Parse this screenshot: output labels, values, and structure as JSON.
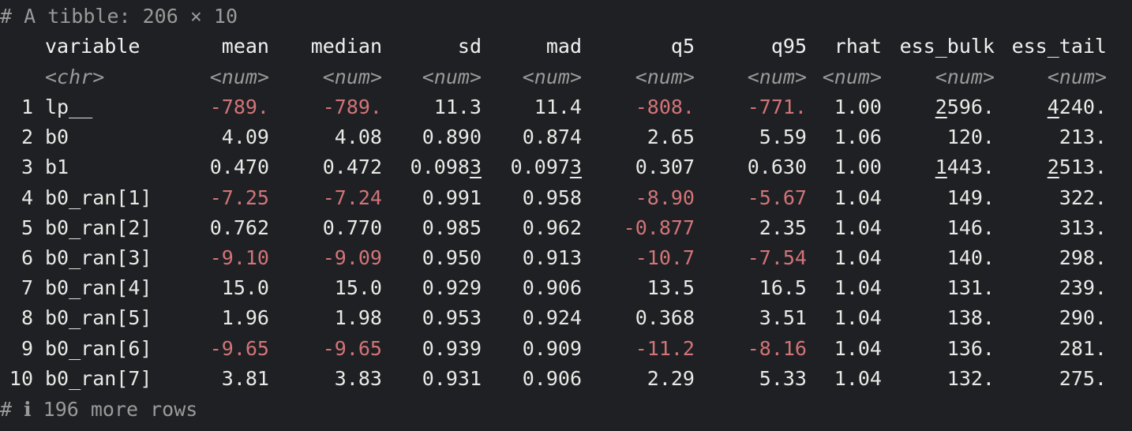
{
  "header_comment": "# A tibble: 206 × 10",
  "columns": [
    {
      "name": "variable",
      "type": "<chr>"
    },
    {
      "name": "mean",
      "type": "<num>"
    },
    {
      "name": "median",
      "type": "<num>"
    },
    {
      "name": "sd",
      "type": "<num>"
    },
    {
      "name": "mad",
      "type": "<num>"
    },
    {
      "name": "q5",
      "type": "<num>"
    },
    {
      "name": "q95",
      "type": "<num>"
    },
    {
      "name": "rhat",
      "type": "<num>"
    },
    {
      "name": "ess_bulk",
      "type": "<num>"
    },
    {
      "name": "ess_tail",
      "type": "<num>"
    }
  ],
  "rows": [
    {
      "n": "1",
      "variable": "lp__",
      "mean": "-789.",
      "median": "-789.",
      "sd": "11.3",
      "mad": "11.4",
      "q5": "-808.",
      "q95": "-771.",
      "rhat": "1.00",
      "ess_bulk": "2596.",
      "ess_tail": "4240."
    },
    {
      "n": "2",
      "variable": "b0",
      "mean": "4.09",
      "median": "4.08",
      "sd": "0.890",
      "mad": "0.874",
      "q5": "2.65",
      "q95": "5.59",
      "rhat": "1.06",
      "ess_bulk": "120.",
      "ess_tail": "213."
    },
    {
      "n": "3",
      "variable": "b1",
      "mean": "0.470",
      "median": "0.472",
      "sd": "0.0983",
      "mad": "0.0973",
      "q5": "0.307",
      "q95": "0.630",
      "rhat": "1.00",
      "ess_bulk": "1443.",
      "ess_tail": "2513."
    },
    {
      "n": "4",
      "variable": "b0_ran[1]",
      "mean": "-7.25",
      "median": "-7.24",
      "sd": "0.991",
      "mad": "0.958",
      "q5": "-8.90",
      "q95": "-5.67",
      "rhat": "1.04",
      "ess_bulk": "149.",
      "ess_tail": "322."
    },
    {
      "n": "5",
      "variable": "b0_ran[2]",
      "mean": "0.762",
      "median": "0.770",
      "sd": "0.985",
      "mad": "0.962",
      "q5": "-0.877",
      "q95": "2.35",
      "rhat": "1.04",
      "ess_bulk": "146.",
      "ess_tail": "313."
    },
    {
      "n": "6",
      "variable": "b0_ran[3]",
      "mean": "-9.10",
      "median": "-9.09",
      "sd": "0.950",
      "mad": "0.913",
      "q5": "-10.7",
      "q95": "-7.54",
      "rhat": "1.04",
      "ess_bulk": "140.",
      "ess_tail": "298."
    },
    {
      "n": "7",
      "variable": "b0_ran[4]",
      "mean": "15.0",
      "median": "15.0",
      "sd": "0.929",
      "mad": "0.906",
      "q5": "13.5",
      "q95": "16.5",
      "rhat": "1.04",
      "ess_bulk": "131.",
      "ess_tail": "239."
    },
    {
      "n": "8",
      "variable": "b0_ran[5]",
      "mean": "1.96",
      "median": "1.98",
      "sd": "0.953",
      "mad": "0.924",
      "q5": "0.368",
      "q95": "3.51",
      "rhat": "1.04",
      "ess_bulk": "138.",
      "ess_tail": "290."
    },
    {
      "n": "9",
      "variable": "b0_ran[6]",
      "mean": "-9.65",
      "median": "-9.65",
      "sd": "0.939",
      "mad": "0.909",
      "q5": "-11.2",
      "q95": "-8.16",
      "rhat": "1.04",
      "ess_bulk": "136.",
      "ess_tail": "281."
    },
    {
      "n": "10",
      "variable": "b0_ran[7]",
      "mean": "3.81",
      "median": "3.83",
      "sd": "0.931",
      "mad": "0.906",
      "q5": "2.29",
      "q95": "5.33",
      "rhat": "1.04",
      "ess_bulk": "132.",
      "ess_tail": "275."
    }
  ],
  "footer_comment": "# ℹ 196 more rows"
}
